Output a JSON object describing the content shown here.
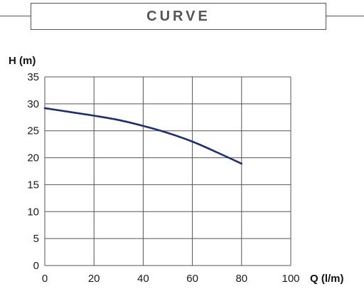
{
  "header": {
    "title": "CURVE"
  },
  "colors": {
    "curve": "#1f2f6e",
    "grid": "#555555",
    "frame": "#555555"
  },
  "chart_data": {
    "type": "line",
    "ylabel": "H (m)",
    "xlabel": "Q (l/m)",
    "xlim": [
      0,
      100
    ],
    "ylim": [
      0,
      35
    ],
    "x_ticks": [
      0,
      20,
      40,
      60,
      80,
      100
    ],
    "y_ticks": [
      0,
      5,
      10,
      15,
      20,
      25,
      30,
      35
    ],
    "grid": true,
    "series": [
      {
        "x": [
          0,
          10,
          20,
          30,
          40,
          50,
          60,
          70,
          80
        ],
        "values": [
          29.2,
          28.5,
          27.8,
          27.0,
          25.9,
          24.6,
          23.0,
          21.0,
          18.9
        ]
      }
    ]
  }
}
